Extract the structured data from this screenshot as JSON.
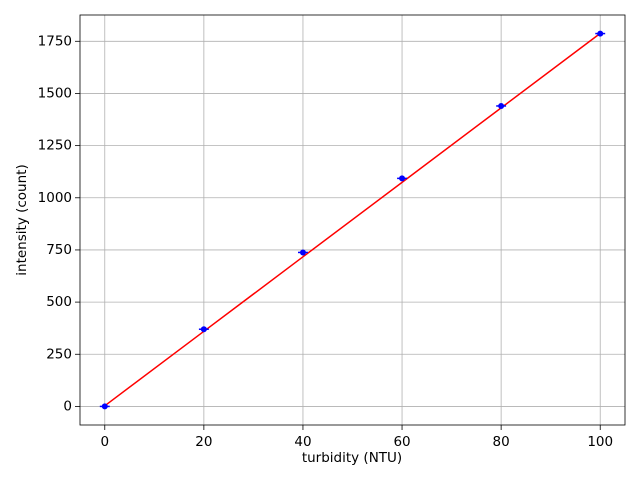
{
  "chart_data": {
    "type": "scatter",
    "x_label": "turbidity (NTU)",
    "y_label": "intensity (count)",
    "x": [
      0,
      20,
      40,
      60,
      80,
      100
    ],
    "series": [
      {
        "color": "#0000ff",
        "values": [
          0,
          370,
          738,
          1093,
          1440,
          1787
        ],
        "xerr": [
          1,
          1,
          1,
          1,
          1,
          1
        ],
        "style": "markers"
      },
      {
        "color": "#ff0000",
        "values": [
          3,
          360,
          717,
          1074,
          1431,
          1788
        ],
        "style": "line"
      }
    ],
    "xlim": [
      -5,
      105
    ],
    "ylim": [
      -89,
      1876
    ],
    "xticks": [
      0,
      20,
      40,
      60,
      80,
      100
    ],
    "yticks": [
      0,
      250,
      500,
      750,
      1000,
      1250,
      1500,
      1750
    ],
    "grid": true
  }
}
